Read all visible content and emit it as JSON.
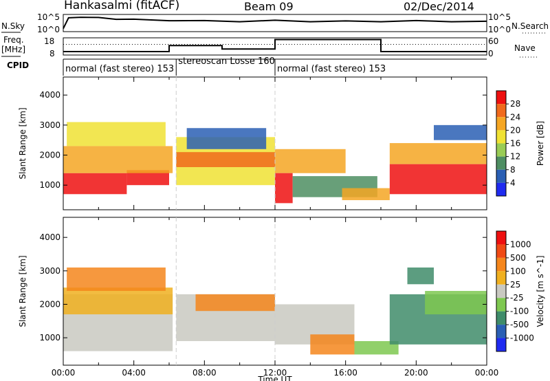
{
  "header": {
    "station": "Hankasalmi (fitACF)",
    "beam": "Beam 09",
    "date": "02/Dec/2014"
  },
  "chart_data": [
    {
      "type": "line",
      "name": "noise",
      "left_label": "N.Sky",
      "right_label": "N.Search",
      "left_ticks": [
        "10^5",
        "10^0"
      ],
      "right_ticks": [
        "10^5",
        "10^0"
      ],
      "series": [
        {
          "name": "N.Sky",
          "style": "solid",
          "x": [
            0,
            0.3,
            1,
            2,
            3,
            4,
            6,
            8,
            10,
            12,
            14,
            16,
            18,
            20,
            22,
            24
          ],
          "y": [
            0.2,
            0.78,
            0.86,
            0.8,
            0.74,
            0.7,
            0.66,
            0.62,
            0.6,
            0.64,
            0.6,
            0.6,
            0.6,
            0.62,
            0.6,
            0.58
          ]
        }
      ]
    },
    {
      "type": "line",
      "name": "frequency",
      "left_label": "Freq.",
      "left_unit": "[MHz]",
      "right_label": "Nave",
      "left_ticks": [
        "18",
        "8"
      ],
      "right_ticks": [
        "60",
        "0"
      ],
      "series": [
        {
          "name": "Nave",
          "style": "dotted",
          "x": [
            0,
            24
          ],
          "y": [
            0.62,
            0.62
          ]
        },
        {
          "name": "Freq.",
          "style": "solid",
          "steps": [
            [
              0,
              0.2
            ],
            [
              6.0,
              0.55
            ],
            [
              9.0,
              0.35
            ],
            [
              12.0,
              0.9
            ],
            [
              18.0,
              0.2
            ],
            [
              24,
              0.2
            ]
          ]
        }
      ]
    },
    {
      "type": "table",
      "name": "cpid",
      "label": "CPID",
      "segments": [
        {
          "start": 0,
          "end": 6.4,
          "text": "normal (fast stereo) 153"
        },
        {
          "start": 6.4,
          "end": 12.0,
          "text": "stereoscan Losse 160"
        },
        {
          "start": 12.0,
          "end": 24,
          "text": "normal (fast stereo) 153"
        }
      ]
    },
    {
      "type": "heatmap",
      "name": "power",
      "ylabel": "Slant Range [km]",
      "ylim": [
        180,
        4600
      ],
      "yticks": [
        1000,
        2000,
        3000,
        4000
      ],
      "xlim": [
        0,
        24
      ],
      "colorbar": {
        "label": "Power [dB]",
        "ticks": [
          "4",
          "8",
          "12",
          "16",
          "20",
          "24",
          "28"
        ],
        "colors": [
          "#1f2bf0",
          "#2a5fb4",
          "#4e8e62",
          "#99cc55",
          "#f0e234",
          "#f5a623",
          "#f06a1c",
          "#ee1010"
        ]
      },
      "bands": [
        {
          "t0": 0.0,
          "t1": 3.6,
          "r0": 700,
          "r1": 1400,
          "level": 7
        },
        {
          "t0": 3.6,
          "t1": 6.0,
          "r0": 1000,
          "r1": 1500,
          "level": 7
        },
        {
          "t0": 0.0,
          "t1": 6.2,
          "r0": 1400,
          "r1": 2300,
          "level": 5
        },
        {
          "t0": 0.2,
          "t1": 5.8,
          "r0": 2300,
          "r1": 3100,
          "level": 4
        },
        {
          "t0": 6.4,
          "t1": 12.0,
          "r0": 1000,
          "r1": 2600,
          "level": 4
        },
        {
          "t0": 6.4,
          "t1": 12.0,
          "r0": 1600,
          "r1": 2100,
          "level": 6
        },
        {
          "t0": 7.0,
          "t1": 11.5,
          "r0": 2200,
          "r1": 2900,
          "level": 1
        },
        {
          "t0": 12.0,
          "t1": 16.0,
          "r0": 1400,
          "r1": 2200,
          "level": 5
        },
        {
          "t0": 12.0,
          "t1": 13.0,
          "r0": 400,
          "r1": 1400,
          "level": 7
        },
        {
          "t0": 13.0,
          "t1": 17.8,
          "r0": 600,
          "r1": 1300,
          "level": 2
        },
        {
          "t0": 15.8,
          "t1": 18.5,
          "r0": 500,
          "r1": 900,
          "level": 5
        },
        {
          "t0": 18.5,
          "t1": 24.0,
          "r0": 700,
          "r1": 1700,
          "level": 7
        },
        {
          "t0": 18.5,
          "t1": 24.0,
          "r0": 1700,
          "r1": 2400,
          "level": 5
        },
        {
          "t0": 21.0,
          "t1": 24.0,
          "r0": 2500,
          "r1": 3000,
          "level": 1
        }
      ]
    },
    {
      "type": "heatmap",
      "name": "velocity",
      "ylabel": "Slant Range [km]",
      "xlabel": "Time UT",
      "ylim": [
        180,
        4600
      ],
      "yticks": [
        1000,
        2000,
        3000,
        4000
      ],
      "xlim": [
        0,
        24
      ],
      "xticks": [
        "00:00",
        "04:00",
        "08:00",
        "12:00",
        "16:00",
        "20:00",
        "00:00"
      ],
      "colorbar": {
        "label": "Velocity [m s^-1]",
        "ticks": [
          "1000",
          "500",
          "100",
          "25",
          "-25",
          "-100",
          "-500",
          "-1000"
        ],
        "colors": [
          "#1f2bf0",
          "#2a5fb4",
          "#3f8c6a",
          "#7ec850",
          "#c9c9c1",
          "#f0b020",
          "#f5861c",
          "#f04a14",
          "#ee1010"
        ]
      },
      "bands": [
        {
          "t0": 0.0,
          "t1": 6.2,
          "r0": 600,
          "r1": 2300,
          "level": 4
        },
        {
          "t0": 0.0,
          "t1": 6.2,
          "r0": 1700,
          "r1": 2500,
          "level": 5
        },
        {
          "t0": 0.2,
          "t1": 5.8,
          "r0": 2400,
          "r1": 3100,
          "level": 6
        },
        {
          "t0": 6.4,
          "t1": 12.0,
          "r0": 900,
          "r1": 2300,
          "level": 4
        },
        {
          "t0": 7.5,
          "t1": 12.0,
          "r0": 1800,
          "r1": 2300,
          "level": 6
        },
        {
          "t0": 12.0,
          "t1": 16.5,
          "r0": 800,
          "r1": 2000,
          "level": 4
        },
        {
          "t0": 14.0,
          "t1": 16.5,
          "r0": 500,
          "r1": 1100,
          "level": 6
        },
        {
          "t0": 16.5,
          "t1": 19.0,
          "r0": 500,
          "r1": 900,
          "level": 3
        },
        {
          "t0": 18.5,
          "t1": 24.0,
          "r0": 800,
          "r1": 2300,
          "level": 2
        },
        {
          "t0": 20.5,
          "t1": 24.0,
          "r0": 1700,
          "r1": 2400,
          "level": 3
        },
        {
          "t0": 19.5,
          "t1": 21.0,
          "r0": 2600,
          "r1": 3100,
          "level": 2
        }
      ]
    }
  ]
}
